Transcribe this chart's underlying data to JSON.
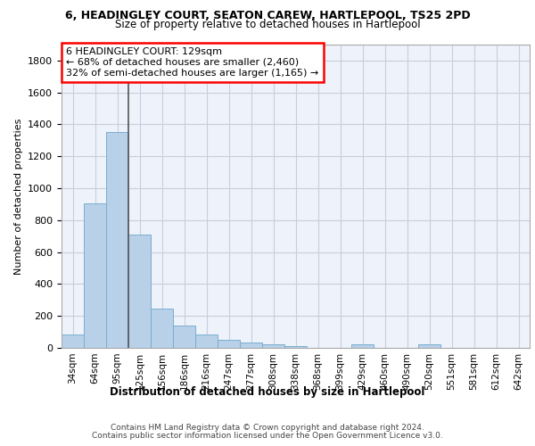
{
  "title1": "6, HEADINGLEY COURT, SEATON CAREW, HARTLEPOOL, TS25 2PD",
  "title2": "Size of property relative to detached houses in Hartlepool",
  "xlabel": "Distribution of detached houses by size in Hartlepool",
  "ylabel": "Number of detached properties",
  "categories": [
    "34sqm",
    "64sqm",
    "95sqm",
    "125sqm",
    "156sqm",
    "186sqm",
    "216sqm",
    "247sqm",
    "277sqm",
    "308sqm",
    "338sqm",
    "368sqm",
    "399sqm",
    "429sqm",
    "460sqm",
    "490sqm",
    "520sqm",
    "551sqm",
    "581sqm",
    "612sqm",
    "642sqm"
  ],
  "values": [
    82,
    905,
    1355,
    710,
    248,
    138,
    85,
    50,
    32,
    20,
    12,
    0,
    0,
    20,
    0,
    0,
    20,
    0,
    0,
    0,
    0
  ],
  "bar_color": "#b8d0e8",
  "bar_edge_color": "#7aaed0",
  "vline_index": 3,
  "annotation_text1": "6 HEADINGLEY COURT: 129sqm",
  "annotation_text2": "← 68% of detached houses are smaller (2,460)",
  "annotation_text3": "32% of semi-detached houses are larger (1,165) →",
  "vline_color": "#555555",
  "footer1": "Contains HM Land Registry data © Crown copyright and database right 2024.",
  "footer2": "Contains public sector information licensed under the Open Government Licence v3.0.",
  "ylim": [
    0,
    1900
  ],
  "yticks": [
    0,
    200,
    400,
    600,
    800,
    1000,
    1200,
    1400,
    1600,
    1800
  ],
  "bg_color": "#eef2fa",
  "grid_color": "#c8cedc"
}
